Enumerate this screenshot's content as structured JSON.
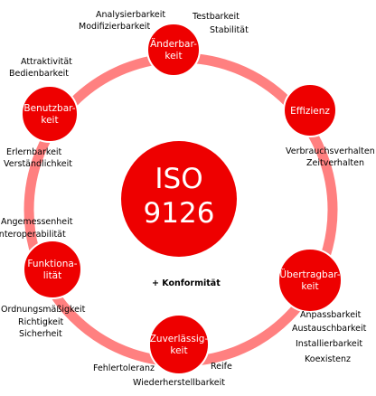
{
  "center": {
    "line1": "ISO",
    "line2": "9126"
  },
  "colors": {
    "ring": "#ff8080",
    "node": "#ee0000",
    "node_stroke": "#ffffff"
  },
  "nodes": [
    {
      "id": "aenderbarkeit",
      "lines": [
        "Änderbar-",
        "keit"
      ]
    },
    {
      "id": "effizienz",
      "lines": [
        "Effizienz"
      ]
    },
    {
      "id": "uebertragbarkeit",
      "lines": [
        "Übertragbar-",
        "keit"
      ]
    },
    {
      "id": "zuverlaessigkeit",
      "lines": [
        "Zuverlässig-",
        "keit"
      ]
    },
    {
      "id": "funktionalitaet",
      "lines": [
        "Funktiona-",
        "lität"
      ]
    },
    {
      "id": "benutzbarkeit",
      "lines": [
        "Benutzbar-",
        "keit"
      ]
    }
  ],
  "labels": {
    "analysierbarkeit": "Analysierbarkeit",
    "modifizierbarkeit": "Modifizierbarkeit",
    "testbarkeit": "Testbarkeit",
    "stabilitaet": "Stabilität",
    "attraktivitaet": "Attraktivität",
    "bedienbarkeit": "Bedienbarkeit",
    "verbrauchsverhalten": "Verbrauchsverhalten",
    "zeitverhalten": "Zeitverhalten",
    "erlernbarkeit": "Erlernbarkeit",
    "verstaendlichkeit": "Verständlichkeit",
    "angemessenheit": "Angemessenheit",
    "interoperabilitaet": "Interoperabilität",
    "ordnungsmaessigkeit": "Ordnungsmäßigkeit",
    "richtigkeit": "Richtigkeit",
    "sicherheit": "Sicherheit",
    "anpassbarkeit": "Anpassbarkeit",
    "austauschbarkeit": "Austauschbarkeit",
    "installierbarkeit": "Installierbarkeit",
    "koexistenz": "Koexistenz",
    "fehlertoleranz": "Fehlertoleranz",
    "reife": "Reife",
    "wiederherstellbarkeit": "Wiederherstellbarkeit",
    "konformitaet": "+ Konformität"
  }
}
